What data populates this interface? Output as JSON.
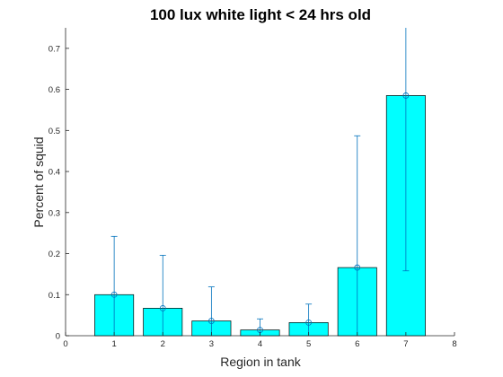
{
  "chart_data": {
    "type": "bar",
    "title": "100 lux white light < 24 hrs old",
    "xlabel": "Region in tank",
    "ylabel": "Percent of squid",
    "x": [
      1,
      2,
      3,
      4,
      5,
      6,
      7
    ],
    "values": [
      0.1,
      0.067,
      0.036,
      0.014,
      0.032,
      0.166,
      0.585
    ],
    "error_lower": [
      0.1,
      0.067,
      0.036,
      0.014,
      0.032,
      0.166,
      0.427
    ],
    "error_upper": [
      0.142,
      0.129,
      0.083,
      0.027,
      0.045,
      0.321,
      0.175
    ],
    "xlim": [
      0,
      8
    ],
    "ylim": [
      0,
      0.75
    ],
    "xticks": [
      "0",
      "1",
      "2",
      "3",
      "4",
      "5",
      "6",
      "7",
      "8"
    ],
    "yticks": [
      "0",
      "0.1",
      "0.2",
      "0.3",
      "0.4",
      "0.5",
      "0.6",
      "0.7"
    ],
    "bar_color": "#00ffff",
    "error_color": "#0072bd",
    "grid": false
  }
}
